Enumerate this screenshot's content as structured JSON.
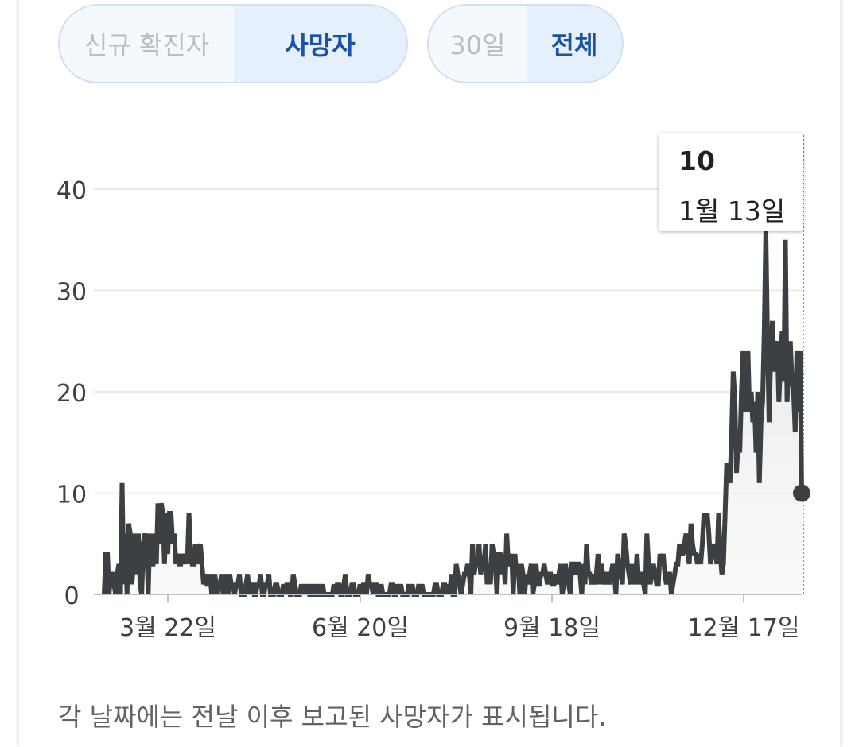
{
  "controls": {
    "metric_options": [
      "신규 확진자",
      "사망자"
    ],
    "metric_selected": "사망자",
    "range_options": [
      "30일",
      "전체"
    ],
    "range_selected": "전체"
  },
  "tooltip": {
    "value": "10",
    "date": "1월 13일"
  },
  "footnote": "각 날짜에는 전날 이후 보고된 사망자가 표시됩니다.",
  "colors": {
    "line": "#3c4043",
    "accent": "#1a53a5",
    "grid": "#e8eaed",
    "toggle_border": "#cfe0f5"
  },
  "chart_data": {
    "type": "line",
    "title": "",
    "xlabel": "",
    "ylabel": "",
    "ylim": [
      0,
      45
    ],
    "yticks": [
      0,
      10,
      20,
      30,
      40
    ],
    "xtick_labels": [
      "3월 22일",
      "6월 20일",
      "9월 18일",
      "12월 17일"
    ],
    "grid": true,
    "highlight": {
      "date": "1월 13일",
      "value": 10
    },
    "series": [
      {
        "values": [
          0,
          4,
          4,
          0,
          2,
          2,
          1,
          0,
          2,
          3,
          0,
          11,
          1,
          6,
          0,
          7,
          6,
          1,
          3,
          6,
          2,
          6,
          1,
          0,
          5,
          6,
          5,
          0,
          6,
          3,
          3,
          6,
          3,
          9,
          5,
          9,
          8,
          3,
          8,
          4,
          8,
          8,
          5,
          6,
          3,
          4,
          3,
          3,
          4,
          3,
          4,
          3,
          8,
          4,
          3,
          3,
          5,
          3,
          4,
          5,
          3,
          1,
          2,
          1,
          1,
          2,
          0,
          1,
          2,
          0,
          1,
          1,
          2,
          0,
          2,
          1,
          0,
          2,
          1,
          1,
          0,
          1,
          1,
          2,
          0,
          0,
          0,
          1,
          2,
          0,
          1,
          1,
          0,
          0,
          1,
          1,
          2,
          0,
          0,
          1,
          1,
          2,
          0,
          0,
          0,
          1,
          1,
          0,
          0,
          0,
          1,
          0,
          1,
          1,
          0,
          0,
          2,
          1,
          0,
          0,
          0,
          1,
          0,
          1,
          0,
          1,
          0,
          0,
          1,
          0,
          0,
          1,
          0,
          0,
          1,
          0,
          0,
          0,
          0,
          0,
          0,
          1,
          0,
          1,
          1,
          0,
          0,
          1,
          2,
          0,
          0,
          0,
          1,
          1,
          0,
          0,
          0,
          1,
          0,
          1,
          1,
          0,
          2,
          1,
          1,
          0,
          1,
          1,
          0,
          0,
          1,
          0,
          0,
          0,
          0,
          0,
          1,
          1,
          0,
          0,
          1,
          0,
          1,
          0,
          0,
          0,
          0,
          1,
          0,
          1,
          0,
          0,
          0,
          1,
          0,
          1,
          0,
          0,
          0,
          0,
          0,
          0,
          0,
          1,
          1,
          0,
          0,
          0,
          1,
          1,
          0,
          1,
          0,
          2,
          0,
          0,
          3,
          2,
          1,
          0,
          1,
          2,
          2,
          3,
          2,
          0,
          5,
          2,
          3,
          3,
          5,
          2,
          3,
          3,
          5,
          1,
          3,
          1,
          5,
          4,
          3,
          0,
          4,
          4,
          2,
          4,
          1,
          6,
          3,
          3,
          4,
          0,
          4,
          2,
          3,
          0,
          3,
          2,
          0,
          2,
          1,
          2,
          3,
          0,
          1,
          3,
          1,
          1,
          2,
          2,
          3,
          2,
          1,
          2,
          2,
          1,
          1,
          2,
          1,
          2,
          3,
          0,
          1,
          3,
          2,
          1,
          0,
          3,
          3,
          2,
          3,
          3,
          2,
          0,
          3,
          1,
          5,
          2,
          2,
          1,
          2,
          1,
          2,
          4,
          1,
          3,
          2,
          1,
          2,
          2,
          1,
          2,
          3,
          2,
          0,
          4,
          3,
          2,
          1,
          6,
          5,
          3,
          2,
          1,
          3,
          1,
          2,
          4,
          1,
          2,
          2,
          1,
          0,
          6,
          3,
          1,
          2,
          3,
          2,
          1,
          1,
          4,
          3,
          4,
          2,
          1,
          2,
          2,
          0,
          1,
          2,
          3,
          3,
          5,
          4,
          4,
          5,
          6,
          4,
          3,
          7,
          5,
          4,
          4,
          3,
          4,
          3,
          5,
          8,
          7,
          8,
          6,
          3,
          4,
          5,
          4,
          3,
          8,
          4,
          2,
          3,
          8,
          13,
          12,
          11,
          16,
          22,
          19,
          12,
          15,
          14,
          20,
          24,
          18,
          21,
          24,
          18,
          20,
          17,
          19,
          14,
          20,
          11,
          17,
          19,
          26,
          36,
          25,
          17,
          24,
          27,
          22,
          24,
          25,
          19,
          23,
          26,
          21,
          35,
          19,
          23,
          25,
          21,
          20,
          16,
          24,
          18,
          24,
          10
        ]
      }
    ]
  }
}
